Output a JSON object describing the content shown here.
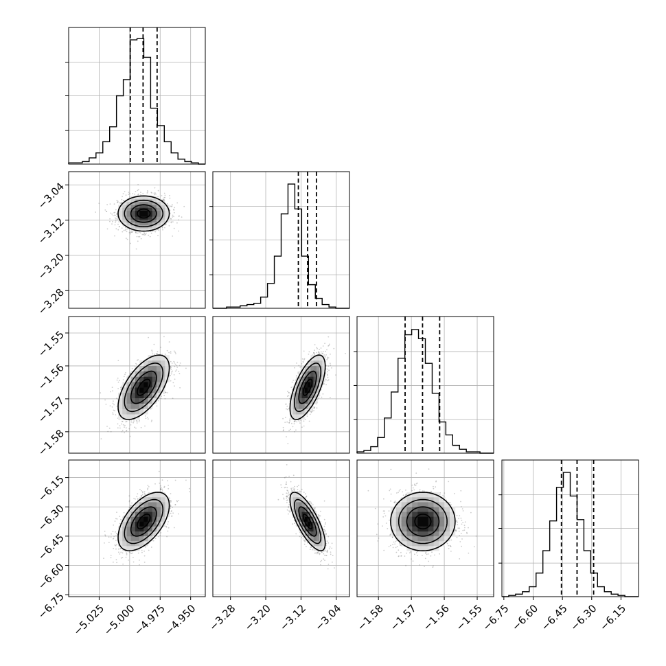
{
  "chart_data": {
    "type": "corner",
    "parameters": [
      {
        "lim": [
          -5.05,
          -4.938
        ],
        "ticks": [
          -5.025,
          -5.0,
          -4.975,
          -4.95
        ],
        "tick_labels": [
          "−5.025",
          "−5.000",
          "−4.975",
          "−4.950"
        ],
        "mean": -4.9885,
        "sd": 0.0105,
        "quantiles": [
          -4.9995,
          -4.989,
          -4.9775
        ]
      },
      {
        "lim": [
          -3.32,
          -3.01
        ],
        "ticks": [
          -3.28,
          -3.2,
          -3.12,
          -3.04
        ],
        "tick_labels": [
          "−3.28",
          "−3.20",
          "−3.12",
          "−3.04"
        ],
        "mean": -3.105,
        "sd": 0.02,
        "quantiles": [
          -3.126,
          -3.105,
          -3.085
        ]
      },
      {
        "lim": [
          -1.5865,
          -1.545
        ],
        "ticks": [
          -1.58,
          -1.57,
          -1.56,
          -1.55
        ],
        "tick_labels": [
          "−1.58",
          "−1.57",
          "−1.56",
          "−1.55"
        ],
        "mean": -1.5665,
        "sd": 0.0049,
        "quantiles": [
          -1.5719,
          -1.5666,
          -1.5614
        ]
      },
      {
        "lim": [
          -6.76,
          -6.06
        ],
        "ticks": [
          -6.75,
          -6.6,
          -6.45,
          -6.3,
          -6.15
        ],
        "tick_labels": [
          "−6.75",
          "−6.60",
          "−6.45",
          "−6.30",
          "−6.15"
        ],
        "mean": -6.375,
        "sd": 0.075,
        "quantiles": [
          -6.455,
          -6.375,
          -6.29
        ]
      }
    ],
    "histograms": [
      {
        "param": 0,
        "bin_range": [
          -5.05,
          -4.938
        ],
        "counts": [
          1,
          1,
          2,
          5,
          9,
          18,
          30,
          55,
          68,
          100,
          101,
          86,
          45,
          31,
          18,
          9,
          4,
          2,
          1,
          0
        ],
        "ylim": [
          0,
          110
        ],
        "ticks": [
          27,
          55,
          82
        ]
      },
      {
        "param": 1,
        "bin_range": [
          -3.32,
          -3.01
        ],
        "counts": [
          0,
          0,
          1,
          1,
          2,
          3,
          4,
          9,
          20,
          42,
          76,
          100,
          80,
          42,
          19,
          8,
          3,
          1,
          0,
          0
        ],
        "ylim": [
          0,
          110
        ],
        "ticks": [
          27,
          55,
          82
        ]
      },
      {
        "param": 2,
        "bin_range": [
          -1.5865,
          -1.545
        ],
        "counts": [
          1,
          2,
          5,
          12,
          27,
          47,
          73,
          91,
          95,
          88,
          69,
          46,
          24,
          14,
          6,
          3,
          1,
          1,
          0,
          0
        ],
        "ylim": [
          0,
          105
        ],
        "ticks": [
          26,
          52,
          78
        ]
      },
      {
        "param": 3,
        "bin_range": [
          -6.76,
          -6.06
        ],
        "counts": [
          0,
          1,
          2,
          4,
          8,
          19,
          37,
          61,
          88,
          100,
          81,
          62,
          37,
          19,
          8,
          4,
          2,
          1,
          0,
          0
        ],
        "ylim": [
          0,
          110
        ],
        "ticks": [
          27,
          55,
          82
        ]
      }
    ],
    "correlations": [
      {
        "i": 1,
        "j": 0,
        "r": 0.0
      },
      {
        "i": 2,
        "j": 0,
        "r": 0.6
      },
      {
        "i": 2,
        "j": 1,
        "r": 0.65
      },
      {
        "i": 3,
        "j": 0,
        "r": 0.55
      },
      {
        "i": 3,
        "j": 1,
        "r": -0.75
      },
      {
        "i": 3,
        "j": 2,
        "r": 0.0
      }
    ],
    "quantile_levels": [
      0.16,
      0.5,
      0.84
    ],
    "contour_levels": [
      0.5,
      1.0,
      1.5,
      2.0
    ],
    "grid": true
  }
}
